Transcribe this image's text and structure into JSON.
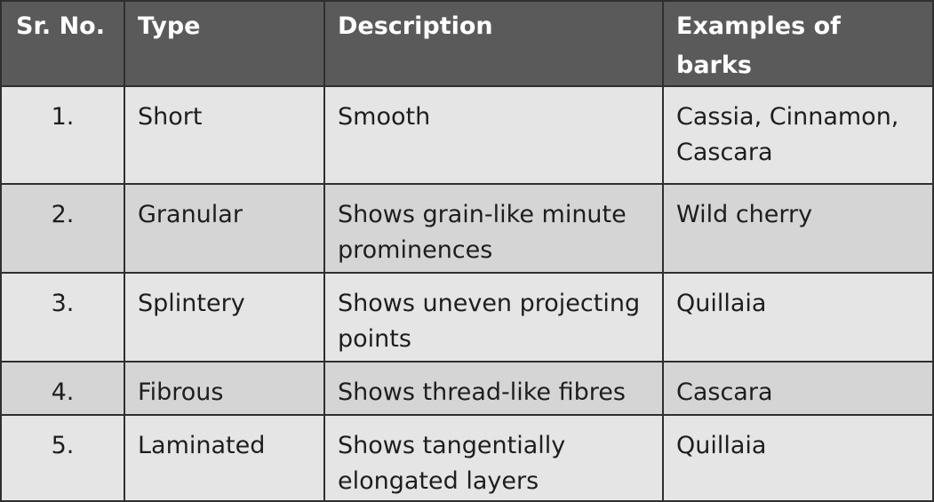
{
  "table": {
    "headers": [
      "Sr. No.",
      "Type",
      "Description",
      "Examples of barks"
    ],
    "rows": [
      {
        "no": "1.",
        "type": "Short",
        "description": "Smooth",
        "examples": "Cassia, Cinnamon, Cascara"
      },
      {
        "no": "2.",
        "type": "Granular",
        "description": "Shows grain-like minute prominences",
        "examples": "Wild cherry"
      },
      {
        "no": "3.",
        "type": "Splintery",
        "description": "Shows uneven projecting points",
        "examples": "Quillaia"
      },
      {
        "no": "4.",
        "type": "Fibrous",
        "description": "Shows thread-like fibres",
        "examples": "Cascara"
      },
      {
        "no": "5.",
        "type": "Laminated",
        "description": "Shows tangentially elongated layers",
        "examples": "Quillaia"
      }
    ]
  }
}
